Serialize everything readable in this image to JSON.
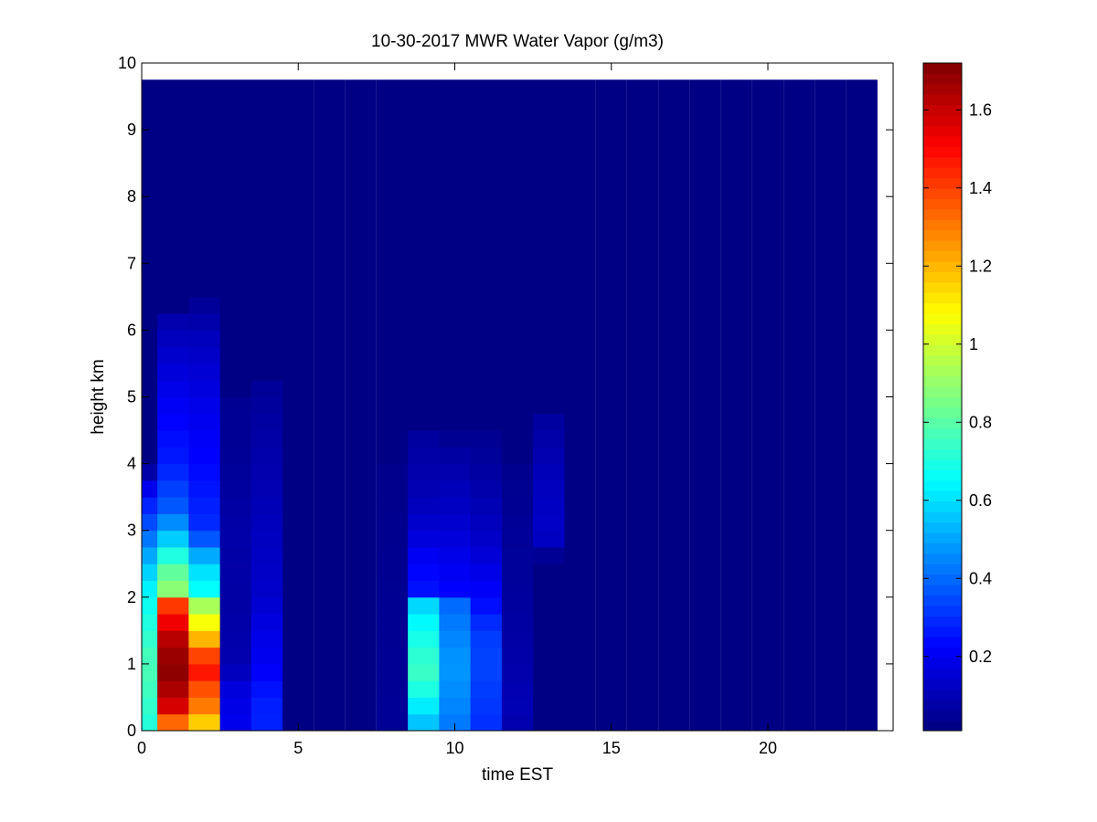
{
  "chart_data": {
    "type": "heatmap",
    "title": "10-30-2017 MWR Water Vapor (g/m3)",
    "xlabel": "time EST",
    "ylabel": "height km",
    "xlim": [
      0,
      24
    ],
    "ylim": [
      0,
      10
    ],
    "x_ticks": [
      "0",
      "5",
      "10",
      "15",
      "20"
    ],
    "y_ticks": [
      "0",
      "1",
      "2",
      "3",
      "4",
      "5",
      "6",
      "7",
      "8",
      "9",
      "10"
    ],
    "colormap": "jet",
    "colorbar": {
      "range": [
        0.01,
        1.72
      ],
      "ticks": [
        "0.2",
        "0.4",
        "0.6",
        "0.8",
        "1",
        "1.2",
        "1.4",
        "1.6"
      ]
    },
    "background_value": 0.02,
    "grid": false,
    "time_bins": [
      0,
      1,
      2,
      3,
      4,
      5,
      6,
      7,
      8,
      9,
      10,
      11,
      12,
      13,
      14,
      15,
      16,
      17,
      18,
      19,
      20,
      21,
      22,
      23
    ],
    "height_top_km": 9.75,
    "height_step_km": 0.25,
    "columns": [
      {
        "time": 0,
        "top": 4.0,
        "profile": [
          [
            0,
            0.7
          ],
          [
            0.5,
            0.75
          ],
          [
            1.0,
            0.78
          ],
          [
            1.5,
            0.72
          ],
          [
            2.0,
            0.66
          ],
          [
            2.5,
            0.55
          ],
          [
            3.0,
            0.38
          ],
          [
            3.5,
            0.25
          ],
          [
            4.0,
            0.02
          ]
        ]
      },
      {
        "time": 1,
        "top": 6.2,
        "profile": [
          [
            0,
            1.18
          ],
          [
            0.3,
            1.55
          ],
          [
            0.8,
            1.7
          ],
          [
            1.1,
            1.68
          ],
          [
            1.4,
            1.62
          ],
          [
            1.7,
            1.5
          ],
          [
            1.9,
            1.4
          ],
          [
            2.0,
            0.92
          ],
          [
            2.5,
            0.78
          ],
          [
            2.8,
            0.6
          ],
          [
            3.3,
            0.38
          ],
          [
            4.0,
            0.27
          ],
          [
            5.0,
            0.2
          ],
          [
            6.2,
            0.08
          ]
        ]
      },
      {
        "time": 2,
        "top": 6.4,
        "profile": [
          [
            0,
            1.08
          ],
          [
            0.3,
            1.28
          ],
          [
            0.8,
            1.42
          ],
          [
            1.0,
            1.55
          ],
          [
            1.2,
            1.3
          ],
          [
            1.6,
            1.08
          ],
          [
            1.9,
            0.92
          ],
          [
            2.0,
            0.68
          ],
          [
            2.5,
            0.58
          ],
          [
            3.0,
            0.3
          ],
          [
            4.0,
            0.23
          ],
          [
            5.0,
            0.18
          ],
          [
            5.8,
            0.12
          ],
          [
            6.4,
            0.05
          ]
        ]
      },
      {
        "time": 3,
        "top": 5.0,
        "profile": [
          [
            0,
            0.2
          ],
          [
            0.6,
            0.17
          ],
          [
            1.0,
            0.09
          ],
          [
            2.0,
            0.07
          ],
          [
            3.0,
            0.08
          ],
          [
            4.0,
            0.05
          ],
          [
            5.0,
            0.04
          ]
        ]
      },
      {
        "time": 4,
        "top": 5.2,
        "profile": [
          [
            0,
            0.28
          ],
          [
            0.5,
            0.27
          ],
          [
            1.0,
            0.2
          ],
          [
            1.5,
            0.18
          ],
          [
            2.0,
            0.14
          ],
          [
            2.8,
            0.12
          ],
          [
            3.5,
            0.1
          ],
          [
            4.2,
            0.08
          ],
          [
            5.2,
            0.05
          ]
        ]
      },
      {
        "time": 8,
        "top": 4.0,
        "profile": [
          [
            0,
            0.05
          ],
          [
            2.0,
            0.04
          ],
          [
            4.0,
            0.03
          ]
        ]
      },
      {
        "time": 9,
        "top": 4.6,
        "profile": [
          [
            0,
            0.52
          ],
          [
            0.3,
            0.6
          ],
          [
            0.8,
            0.75
          ],
          [
            1.2,
            0.72
          ],
          [
            1.6,
            0.65
          ],
          [
            1.9,
            0.58
          ],
          [
            2.0,
            0.26
          ],
          [
            2.5,
            0.22
          ],
          [
            3.0,
            0.15
          ],
          [
            3.5,
            0.1
          ],
          [
            4.0,
            0.08
          ],
          [
            4.6,
            0.05
          ]
        ]
      },
      {
        "time": 10,
        "top": 4.4,
        "profile": [
          [
            0,
            0.42
          ],
          [
            0.4,
            0.45
          ],
          [
            1.0,
            0.48
          ],
          [
            1.5,
            0.44
          ],
          [
            1.9,
            0.4
          ],
          [
            2.0,
            0.23
          ],
          [
            2.5,
            0.2
          ],
          [
            3.0,
            0.15
          ],
          [
            4.0,
            0.08
          ],
          [
            4.4,
            0.04
          ]
        ]
      },
      {
        "time": 11,
        "top": 4.4,
        "profile": [
          [
            0,
            0.3
          ],
          [
            0.5,
            0.32
          ],
          [
            1.0,
            0.34
          ],
          [
            1.5,
            0.32
          ],
          [
            1.9,
            0.24
          ],
          [
            2.5,
            0.17
          ],
          [
            3.0,
            0.12
          ],
          [
            4.0,
            0.06
          ],
          [
            4.4,
            0.04
          ]
        ]
      },
      {
        "time": 12,
        "top": 4.1,
        "profile": [
          [
            0,
            0.09
          ],
          [
            0.5,
            0.1
          ],
          [
            1.0,
            0.08
          ],
          [
            2.0,
            0.06
          ],
          [
            3.0,
            0.05
          ],
          [
            4.1,
            0.03
          ]
        ]
      },
      {
        "time": 13,
        "top": 4.7,
        "profile": [
          [
            0,
            0.02
          ],
          [
            2.6,
            0.02
          ],
          [
            2.7,
            0.12
          ],
          [
            3.2,
            0.13
          ],
          [
            4.0,
            0.1
          ],
          [
            4.7,
            0.06
          ]
        ]
      }
    ]
  }
}
